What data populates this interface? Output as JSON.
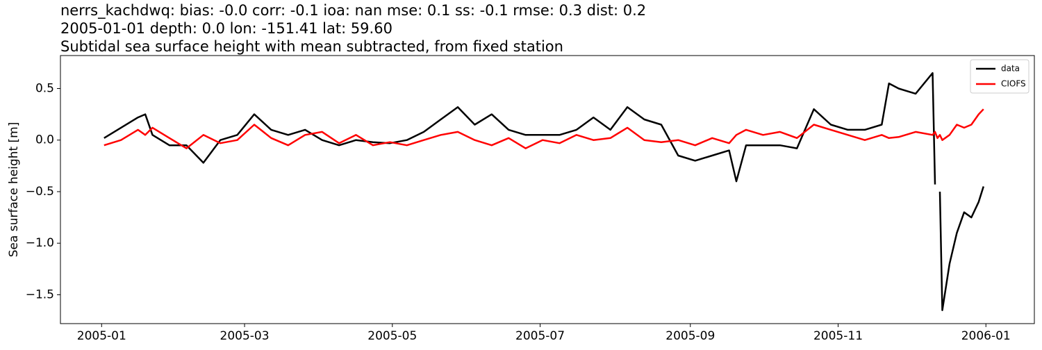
{
  "chart_data": {
    "type": "line",
    "title_lines": [
      "nerrs_kachdwq: bias: -0.0  corr: -0.1  ioa: nan  mse: 0.1  ss: -0.1  rmse: 0.3  dist: 0.2",
      "2005-01-01 depth: 0.0 lon: -151.41 lat: 59.60",
      "Subtidal sea surface height with mean subtracted, from fixed station"
    ],
    "ylabel": "Sea surface height [m]",
    "x": [
      "2005-01-02",
      "2005-01-09",
      "2005-01-16",
      "2005-01-19",
      "2005-01-22",
      "2005-01-29",
      "2005-02-05",
      "2005-02-12",
      "2005-02-19",
      "2005-02-26",
      "2005-03-05",
      "2005-03-12",
      "2005-03-19",
      "2005-03-26",
      "2005-04-02",
      "2005-04-09",
      "2005-04-16",
      "2005-04-23",
      "2005-04-30",
      "2005-05-07",
      "2005-05-14",
      "2005-05-21",
      "2005-05-28",
      "2005-06-04",
      "2005-06-11",
      "2005-06-18",
      "2005-06-25",
      "2005-07-02",
      "2005-07-09",
      "2005-07-16",
      "2005-07-23",
      "2005-07-30",
      "2005-08-06",
      "2005-08-13",
      "2005-08-20",
      "2005-08-27",
      "2005-09-03",
      "2005-09-10",
      "2005-09-17",
      "2005-09-20",
      "2005-09-24",
      "2005-10-01",
      "2005-10-08",
      "2005-10-15",
      "2005-10-22",
      "2005-10-29",
      "2005-11-05",
      "2005-11-12",
      "2005-11-19",
      "2005-11-22",
      "2005-11-26",
      "2005-12-03",
      "2005-12-10",
      "2005-12-11",
      "2005-12-12",
      "2005-12-13",
      "2005-12-14",
      "2005-12-17",
      "2005-12-20",
      "2005-12-23",
      "2005-12-26",
      "2005-12-29",
      "2005-12-31"
    ],
    "series": [
      {
        "name": "data",
        "color": "#000000",
        "values": [
          0.02,
          0.12,
          0.22,
          0.25,
          0.05,
          -0.05,
          -0.05,
          -0.22,
          0.0,
          0.05,
          0.25,
          0.1,
          0.05,
          0.1,
          0.0,
          -0.05,
          0.0,
          -0.02,
          -0.03,
          0.0,
          0.08,
          0.2,
          0.32,
          0.15,
          0.25,
          0.1,
          0.05,
          0.05,
          0.05,
          0.1,
          0.22,
          0.1,
          0.32,
          0.2,
          0.15,
          -0.15,
          -0.2,
          -0.15,
          -0.1,
          -0.4,
          -0.05,
          -0.05,
          -0.05,
          -0.08,
          0.3,
          0.15,
          0.1,
          0.1,
          0.15,
          0.55,
          0.5,
          0.45,
          0.65,
          -0.43,
          null,
          -0.5,
          -1.65,
          -1.2,
          -0.9,
          -0.7,
          -0.75,
          -0.6,
          -0.45
        ]
      },
      {
        "name": "CIOFS",
        "color": "#ff0000",
        "values": [
          -0.05,
          0.0,
          0.1,
          0.05,
          0.12,
          0.02,
          -0.08,
          0.05,
          -0.03,
          0.0,
          0.15,
          0.02,
          -0.05,
          0.05,
          0.08,
          -0.03,
          0.05,
          -0.05,
          -0.02,
          -0.05,
          0.0,
          0.05,
          0.08,
          0.0,
          -0.05,
          0.02,
          -0.08,
          0.0,
          -0.03,
          0.05,
          0.0,
          0.02,
          0.12,
          0.0,
          -0.02,
          0.0,
          -0.05,
          0.02,
          -0.03,
          0.05,
          0.1,
          0.05,
          0.08,
          0.02,
          0.15,
          0.1,
          0.05,
          0.0,
          0.05,
          0.02,
          0.03,
          0.08,
          0.05,
          0.08,
          0.02,
          0.05,
          0.0,
          0.05,
          0.15,
          0.12,
          0.15,
          0.25,
          0.3
        ]
      }
    ],
    "xlim": [
      "2004-12-15",
      "2006-01-21"
    ],
    "xticks": [
      {
        "value": "2005-01-01",
        "label": "2005-01"
      },
      {
        "value": "2005-03-01",
        "label": "2005-03"
      },
      {
        "value": "2005-05-01",
        "label": "2005-05"
      },
      {
        "value": "2005-07-01",
        "label": "2005-07"
      },
      {
        "value": "2005-09-01",
        "label": "2005-09"
      },
      {
        "value": "2005-11-01",
        "label": "2005-11"
      },
      {
        "value": "2006-01-01",
        "label": "2006-01"
      }
    ],
    "ylim": [
      -1.78,
      0.82
    ],
    "yticks": [
      {
        "value": -1.5,
        "label": "−1.5"
      },
      {
        "value": -1.0,
        "label": "−1.0"
      },
      {
        "value": -0.5,
        "label": "−0.5"
      },
      {
        "value": 0.0,
        "label": "0.0"
      },
      0.5
    ],
    "legend": "upper right",
    "grid": false
  }
}
